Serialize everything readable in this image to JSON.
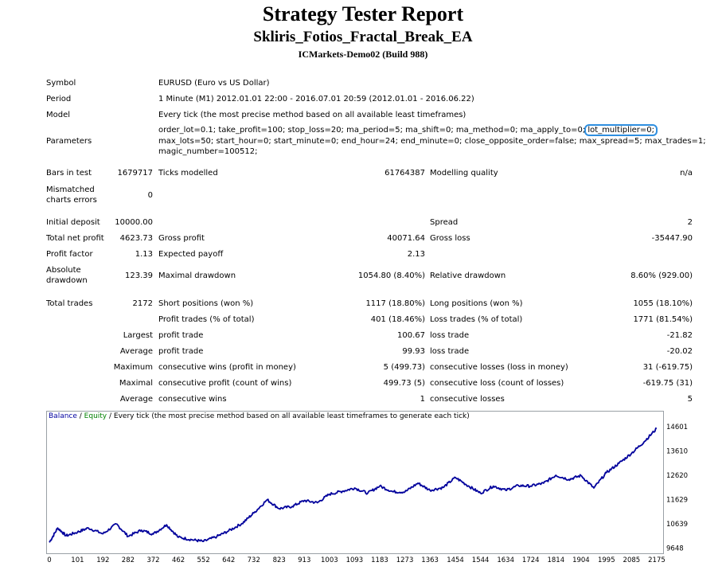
{
  "header": {
    "title": "Strategy Tester Report",
    "ea_name": "Skliris_Fotios_Fractal_Break_EA",
    "server": "ICMarkets-Demo02 (Build 988)"
  },
  "info": {
    "symbol_label": "Symbol",
    "symbol_value": "EURUSD (Euro vs US Dollar)",
    "period_label": "Period",
    "period_value": "1 Minute (M1) 2012.01.01 22:00 - 2016.07.01 20:59 (2012.01.01 - 2016.06.22)",
    "model_label": "Model",
    "model_value": "Every tick (the most precise method based on all available least timeframes)",
    "parameters_label": "Parameters",
    "params_line1_a": "order_lot=0.1; take_profit=100; stop_loss=20; ma_period=5; ma_shift=0; ma_method=0; ma_apply_to=0;",
    "params_line1_b": "lot_multiplier=0;",
    "params_line2": "max_lots=50; start_hour=0; start_minute=0; end_hour=24; end_minute=0; close_opposite_order=false; max_spread=5; max_trades=1;",
    "params_line3": "magic_number=100512;"
  },
  "stats": {
    "bars_label": "Bars in test",
    "bars_value": "1679717",
    "ticks_label": "Ticks modelled",
    "ticks_value": "61764387",
    "quality_label": "Modelling quality",
    "quality_value": "n/a",
    "mismatch_label_1": "Mismatched",
    "mismatch_label_2": "charts errors",
    "mismatch_value": "0",
    "initial_label": "Initial deposit",
    "initial_value": "10000.00",
    "spread_label": "Spread",
    "spread_value": "2",
    "net_label": "Total net profit",
    "net_value": "4623.73",
    "gross_profit_label": "Gross profit",
    "gross_profit_value": "40071.64",
    "gross_loss_label": "Gross loss",
    "gross_loss_value": "-35447.90",
    "pf_label": "Profit factor",
    "pf_value": "1.13",
    "payoff_label": "Expected payoff",
    "payoff_value": "2.13",
    "abs_dd_label_1": "Absolute",
    "abs_dd_label_2": "drawdown",
    "abs_dd_value": "123.39",
    "max_dd_label": "Maximal drawdown",
    "max_dd_value": "1054.80 (8.40%)",
    "rel_dd_label": "Relative drawdown",
    "rel_dd_value": "8.60% (929.00)",
    "trades_label": "Total trades",
    "trades_value": "2172",
    "short_label": "Short positions (won %)",
    "short_value": "1117 (18.80%)",
    "long_label": "Long positions (won %)",
    "long_value": "1055 (18.10%)",
    "pt_label": "Profit trades (% of total)",
    "pt_value": "401 (18.46%)",
    "lt_label": "Loss trades (% of total)",
    "lt_value": "1771 (81.54%)",
    "largest": "Largest",
    "largest_pt_label": "profit trade",
    "largest_pt_value": "100.67",
    "largest_lt_label": "loss trade",
    "largest_lt_value": "-21.82",
    "average": "Average",
    "avg_pt_label": "profit trade",
    "avg_pt_value": "99.93",
    "avg_lt_label": "loss trade",
    "avg_lt_value": "-20.02",
    "maximum": "Maximum",
    "cw_label": "consecutive wins (profit in money)",
    "cw_value": "5 (499.73)",
    "cl_label": "consecutive losses (loss in money)",
    "cl_value": "31 (-619.75)",
    "maximal": "Maximal",
    "cp_label": "consecutive profit (count of wins)",
    "cp_value": "499.73 (5)",
    "closs_label": "consecutive loss (count of losses)",
    "closs_value": "-619.75 (31)",
    "average2": "Average",
    "acw_label": "consecutive wins",
    "acw_value": "1",
    "acl_label": "consecutive losses",
    "acl_value": "5"
  },
  "chart_header": {
    "balance": "Balance",
    "sep": " / ",
    "equity": "Equity",
    "rest": " / Every tick (the most precise method based on all available least timeframes to generate each tick)"
  },
  "colors": {
    "balance": "#0000a0",
    "equity": "#008000",
    "line": "#00009c",
    "highlight": "#2f8fe0"
  },
  "chart_data": {
    "type": "line",
    "title": "",
    "x_ticks": [
      0,
      101,
      192,
      282,
      372,
      462,
      552,
      642,
      732,
      823,
      913,
      1003,
      1093,
      1183,
      1273,
      1363,
      1454,
      1544,
      1634,
      1724,
      1814,
      1904,
      1995,
      2085,
      2175
    ],
    "y_ticks": [
      9648,
      10639,
      11629,
      12620,
      13610,
      14601
    ],
    "xlim": [
      0,
      2178
    ],
    "ylim": [
      9500,
      14800
    ],
    "series": [
      {
        "name": "Balance",
        "x": [
          0,
          30,
          60,
          101,
          140,
          192,
          240,
          282,
          330,
          372,
          420,
          462,
          510,
          552,
          600,
          642,
          690,
          732,
          780,
          823,
          870,
          913,
          960,
          1003,
          1050,
          1093,
          1140,
          1183,
          1230,
          1273,
          1320,
          1363,
          1410,
          1454,
          1500,
          1544,
          1590,
          1634,
          1680,
          1724,
          1770,
          1814,
          1860,
          1904,
          1950,
          1995,
          2040,
          2085,
          2130,
          2175
        ],
        "values": [
          9880,
          10470,
          10150,
          10300,
          10470,
          10230,
          10630,
          10130,
          10380,
          10220,
          10600,
          10090,
          9990,
          9920,
          10120,
          10350,
          10650,
          11080,
          11620,
          11260,
          11350,
          11590,
          11500,
          11850,
          11970,
          12100,
          11890,
          12180,
          11950,
          11940,
          12300,
          12010,
          12120,
          12530,
          12190,
          11890,
          12180,
          12010,
          12200,
          12180,
          12300,
          12620,
          12450,
          12610,
          12100,
          12730,
          13110,
          13520,
          13990,
          14530
        ]
      }
    ]
  }
}
